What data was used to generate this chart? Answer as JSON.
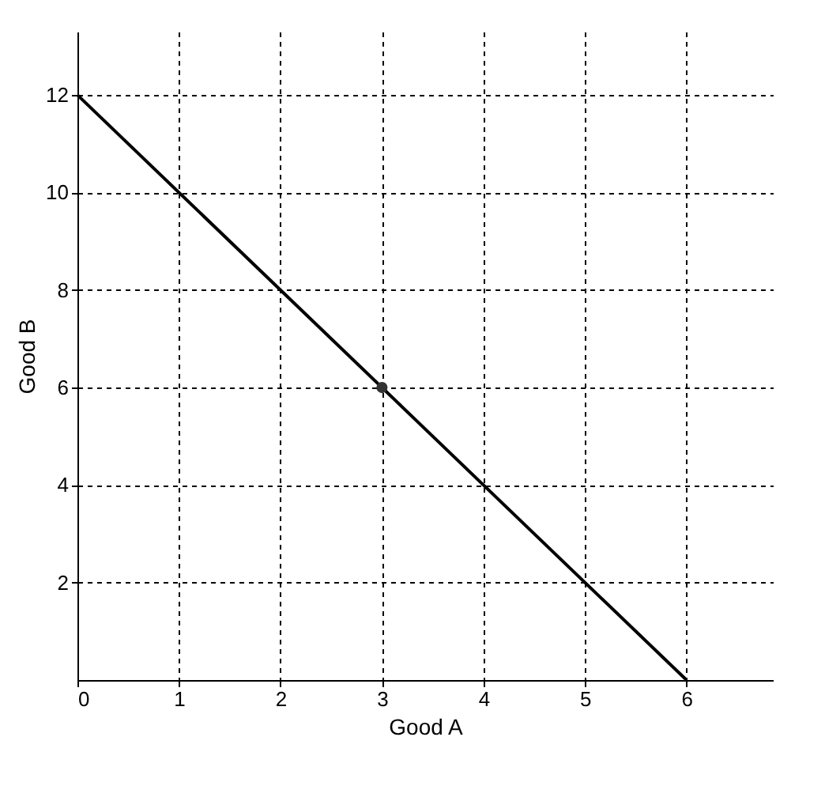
{
  "chart_data": {
    "type": "line",
    "xlabel": "Good A",
    "ylabel": "Good B",
    "xlim": [
      0,
      6.85
    ],
    "ylim": [
      0,
      13.3
    ],
    "xticks": [
      0,
      1,
      2,
      3,
      4,
      5,
      6
    ],
    "yticks": [
      2,
      4,
      6,
      8,
      10,
      12
    ],
    "grid": true,
    "marker": "none",
    "line_style": "solid",
    "series": [
      {
        "color": "#000000",
        "x": [
          0,
          6
        ],
        "values": [
          12,
          0
        ]
      },
      {
        "type": "scatter",
        "color": "#333333",
        "x": [
          3
        ],
        "values": [
          6
        ],
        "marker": "circle"
      }
    ]
  }
}
